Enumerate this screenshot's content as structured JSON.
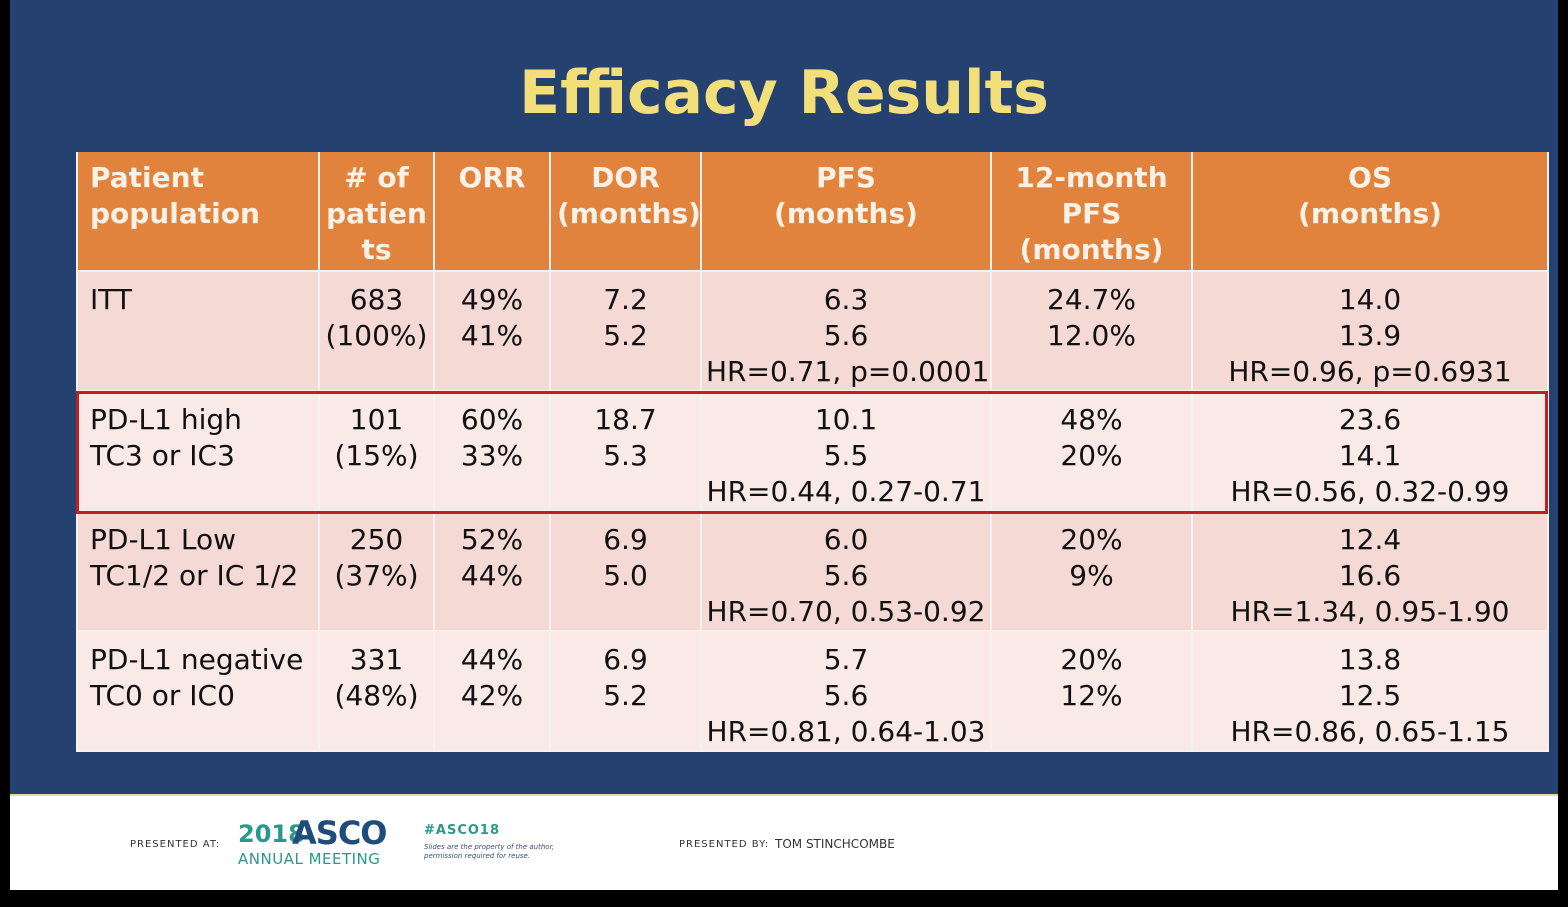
{
  "slide": {
    "title": "Efficacy Results",
    "colors": {
      "background": "#24416f",
      "title": "#f3df7a",
      "header": "#e2833d",
      "row_dark": "#f4d9d5",
      "row_light": "#f9eae8",
      "highlight_border": "#c01f25"
    }
  },
  "table": {
    "headers": [
      [
        "Patient",
        "population"
      ],
      [
        "# of",
        "patien",
        "ts"
      ],
      [
        "ORR"
      ],
      [
        "DOR",
        "(months)"
      ],
      [
        "PFS",
        "(months)"
      ],
      [
        "12-month",
        "PFS",
        "(months)"
      ],
      [
        "OS",
        "(months)"
      ]
    ],
    "rows": [
      {
        "population": [
          "ITT"
        ],
        "patients": [
          "683",
          "(100%)"
        ],
        "orr": [
          "49%",
          "41%"
        ],
        "dor": [
          "7.2",
          "5.2"
        ],
        "pfs": [
          "6.3",
          "5.6",
          "HR=0.71, p=0.0001"
        ],
        "pfs12": [
          "24.7%",
          "12.0%"
        ],
        "os": [
          "14.0",
          "13.9",
          "HR=0.96, p=0.6931"
        ]
      },
      {
        "population": [
          "PD-L1 high",
          "TC3 or IC3"
        ],
        "patients": [
          "101",
          "(15%)"
        ],
        "orr": [
          "60%",
          "33%"
        ],
        "dor": [
          "18.7",
          "5.3"
        ],
        "pfs": [
          "10.1",
          "5.5",
          "HR=0.44, 0.27-0.71"
        ],
        "pfs12": [
          "48%",
          "20%"
        ],
        "os": [
          "23.6",
          "14.1",
          "HR=0.56, 0.32-0.99"
        ]
      },
      {
        "population": [
          "PD-L1 Low",
          "TC1/2 or IC 1/2"
        ],
        "patients": [
          "250",
          "(37%)"
        ],
        "orr": [
          "52%",
          "44%"
        ],
        "dor": [
          "6.9",
          "5.0"
        ],
        "pfs": [
          "6.0",
          "5.6",
          "HR=0.70, 0.53-0.92"
        ],
        "pfs12": [
          "20%",
          "9%"
        ],
        "os": [
          "12.4",
          "16.6",
          "HR=1.34, 0.95-1.90"
        ]
      },
      {
        "population": [
          "PD-L1 negative",
          "TC0 or IC0"
        ],
        "patients": [
          "331",
          "(48%)"
        ],
        "orr": [
          "44%",
          "42%"
        ],
        "dor": [
          "6.9",
          "5.2"
        ],
        "pfs": [
          "5.7",
          "5.6",
          "HR=0.81, 0.64-1.03"
        ],
        "pfs12": [
          "20%",
          "12%"
        ],
        "os": [
          "13.8",
          "12.5",
          "HR=0.86, 0.65-1.15"
        ]
      }
    ]
  },
  "footer": {
    "presented_at": "PRESENTED AT:",
    "asco_year": "2018",
    "asco_name": "ASCO",
    "asco_meeting": "ANNUAL MEETING",
    "hashtag": "#ASCO18",
    "disclaimer": "Slides are the property of the author, permission required for reuse.",
    "presented_by": "PRESENTED BY:",
    "presenter": "TOM STINCHCOMBE"
  }
}
